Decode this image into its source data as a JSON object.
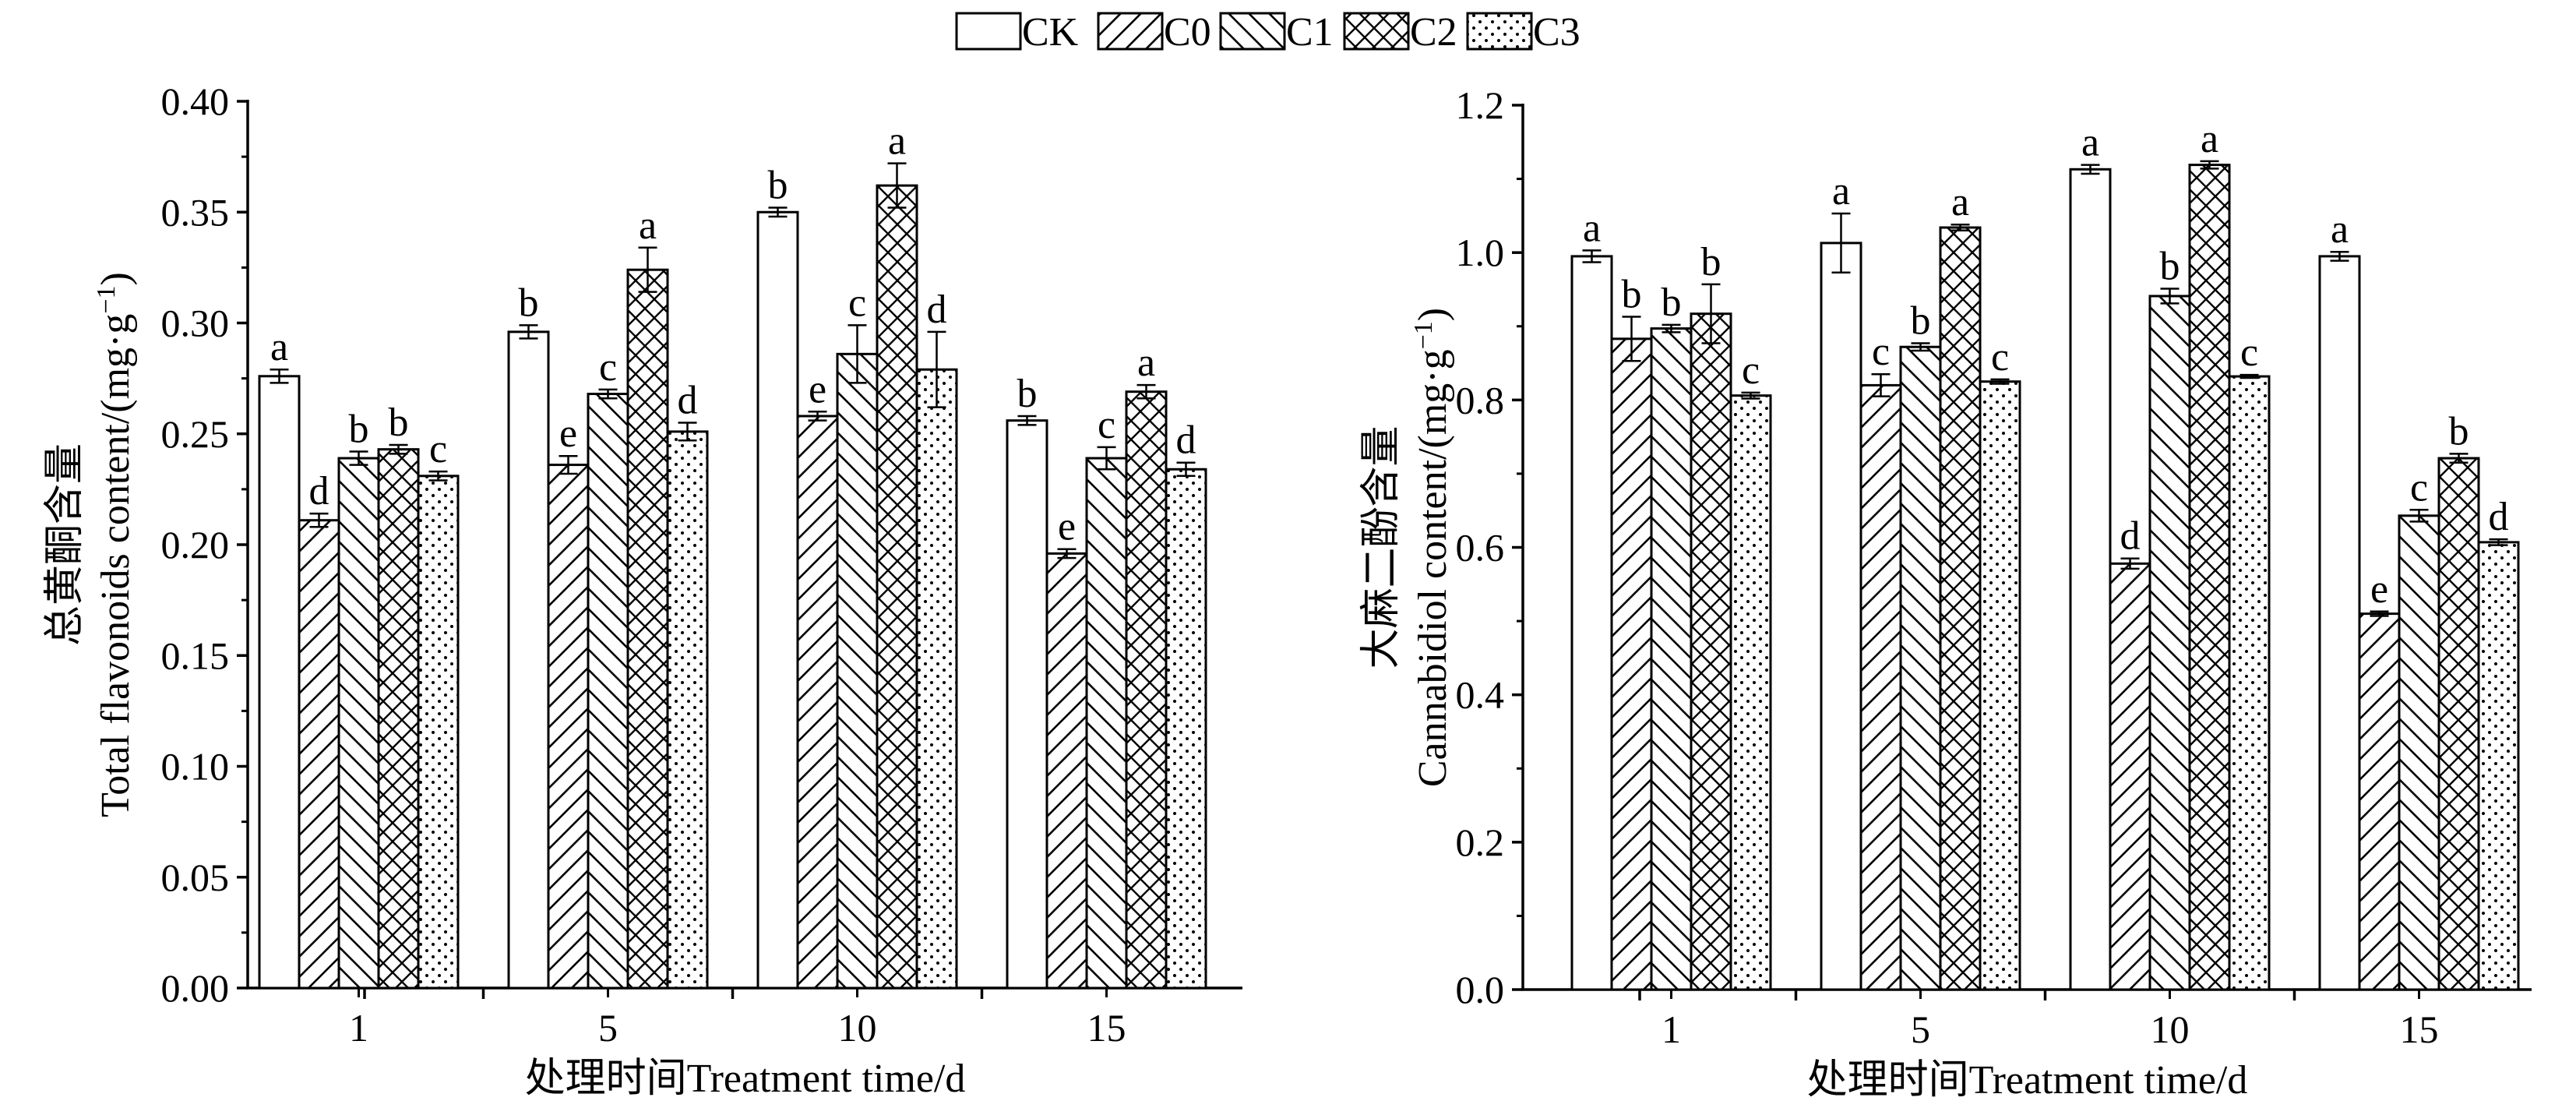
{
  "legend": {
    "items": [
      {
        "name": "CK",
        "pattern": "none"
      },
      {
        "name": "C0",
        "pattern": "diag-right"
      },
      {
        "name": "C1",
        "pattern": "diag-left"
      },
      {
        "name": "C2",
        "pattern": "crosshatch"
      },
      {
        "name": "C3",
        "pattern": "dots"
      }
    ],
    "position": "top-center"
  },
  "chart_data": [
    {
      "type": "bar",
      "xlabel": "处理时间Treatment time/d",
      "ylabel_cn": "总黄酮含量",
      "ylabel_en": "Total flavonoids content/(mg·g",
      "ylabel_sup": "−1",
      "ylabel_end": ")",
      "categories": [
        "1",
        "5",
        "10",
        "15"
      ],
      "ylim": [
        0,
        0.4
      ],
      "yticks": [
        "0.00",
        "0.05",
        "0.10",
        "0.15",
        "0.20",
        "0.25",
        "0.30",
        "0.35",
        "0.40"
      ],
      "series": [
        {
          "name": "CK",
          "values": [
            0.276,
            0.296,
            0.35,
            0.256
          ],
          "errors": [
            0.003,
            0.003,
            0.002,
            0.002
          ],
          "letters": [
            "a",
            "b",
            "b",
            "b"
          ]
        },
        {
          "name": "C0",
          "values": [
            0.211,
            0.236,
            0.258,
            0.196
          ],
          "errors": [
            0.003,
            0.004,
            0.002,
            0.002
          ],
          "letters": [
            "d",
            "e",
            "e",
            "e"
          ]
        },
        {
          "name": "C1",
          "values": [
            0.239,
            0.268,
            0.286,
            0.239
          ],
          "errors": [
            0.003,
            0.002,
            0.013,
            0.005
          ],
          "letters": [
            "b",
            "c",
            "c",
            "c"
          ]
        },
        {
          "name": "C2",
          "values": [
            0.243,
            0.324,
            0.362,
            0.269
          ],
          "errors": [
            0.002,
            0.01,
            0.01,
            0.003
          ],
          "letters": [
            "b",
            "a",
            "a",
            "a"
          ]
        },
        {
          "name": "C3",
          "values": [
            0.231,
            0.251,
            0.279,
            0.234
          ],
          "errors": [
            0.002,
            0.004,
            0.017,
            0.003
          ],
          "letters": [
            "c",
            "d",
            "d",
            "d"
          ]
        }
      ]
    },
    {
      "type": "bar",
      "xlabel": "处理时间Treatment time/d",
      "ylabel_cn": "大麻二酚含量",
      "ylabel_en": "Cannabidiol content/(mg·g",
      "ylabel_sup": "−1",
      "ylabel_end": ")",
      "categories": [
        "1",
        "5",
        "10",
        "15"
      ],
      "ylim": [
        0,
        1.2
      ],
      "yticks": [
        "0.0",
        "0.2",
        "0.4",
        "0.6",
        "0.8",
        "1.0",
        "1.2"
      ],
      "series": [
        {
          "name": "CK",
          "values": [
            0.995,
            1.013,
            1.113,
            0.995
          ],
          "errors": [
            0.008,
            0.04,
            0.006,
            0.006
          ],
          "letters": [
            "a",
            "a",
            "a",
            "a"
          ]
        },
        {
          "name": "C0",
          "values": [
            0.883,
            0.82,
            0.578,
            0.51
          ],
          "errors": [
            0.03,
            0.015,
            0.007,
            0.003
          ],
          "letters": [
            "b",
            "c",
            "d",
            "e"
          ]
        },
        {
          "name": "C1",
          "values": [
            0.897,
            0.872,
            0.941,
            0.643
          ],
          "errors": [
            0.005,
            0.005,
            0.01,
            0.008
          ],
          "letters": [
            "b",
            "b",
            "b",
            "c"
          ]
        },
        {
          "name": "C2",
          "values": [
            0.917,
            1.034,
            1.119,
            0.721
          ],
          "errors": [
            0.04,
            0.004,
            0.005,
            0.006
          ],
          "letters": [
            "b",
            "a",
            "a",
            "b"
          ]
        },
        {
          "name": "C3",
          "values": [
            0.806,
            0.825,
            0.832,
            0.607
          ],
          "errors": [
            0.004,
            0.003,
            0.002,
            0.004
          ],
          "letters": [
            "c",
            "c",
            "c",
            "d"
          ]
        }
      ]
    }
  ]
}
